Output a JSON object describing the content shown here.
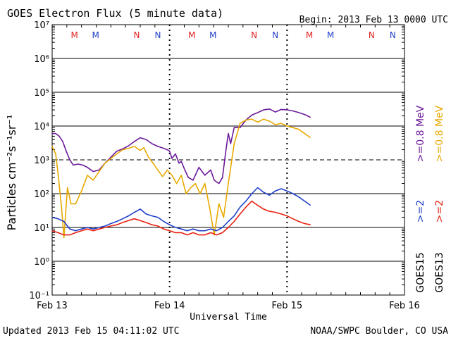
{
  "header": {
    "title": "GOES Electron Flux (5 minute data)",
    "begin": "Begin: 2013 Feb 13 0000 UTC"
  },
  "footer": {
    "updated": "Updated 2013 Feb 15 04:11:02 UTC",
    "credit": "NOAA/SWPC Boulder, CO USA"
  },
  "colors": {
    "goes15_high": "#2040c8",
    "goes13_high": "#e82010",
    "goes15_mev": "#6a1a9a",
    "goes13_mev": "#e8a800",
    "marker_m": "#e02020",
    "marker_n_red": "#e02020",
    "marker_n_blue": "#2040c8",
    "grid": "#000000"
  },
  "chart_data": {
    "type": "line",
    "title": "GOES Electron Flux (5 minute data)",
    "xlabel": "Universal Time",
    "ylabel": "Particles cm⁻²s⁻¹sr⁻¹",
    "x_ticks": [
      "Feb 13",
      "Feb 14",
      "Feb 15",
      "Feb 16"
    ],
    "x_unit": "days since 2013 Feb 13 0000 UTC",
    "xlim": [
      0,
      3
    ],
    "yscale": "log",
    "ylim": [
      0.1,
      10000000
    ],
    "y_ticks": [
      "10⁻¹",
      "10⁰",
      "10¹",
      "10²",
      "10³",
      "10⁴",
      "10⁵",
      "10⁶",
      "10⁷"
    ],
    "threshold_line": 1000,
    "legend": {
      "right_labels": [
        {
          "text": ">=0.8 MeV",
          "series": "goes15_mev",
          "color": "#6a1a9a"
        },
        {
          "text": ">=0.8 MeV",
          "series": "goes13_mev",
          "color": "#e8a800"
        },
        {
          "text": ">=2",
          "series": "goes15_high",
          "color": "#2040c8"
        },
        {
          "text": ">=2",
          "series": "goes13_high",
          "color": "#e82010"
        },
        {
          "text": "GOES15",
          "color": "#000000"
        },
        {
          "text": "GOES13",
          "color": "#000000"
        }
      ]
    },
    "markers": [
      {
        "label": "M",
        "x": 0.19,
        "color": "#e02020"
      },
      {
        "label": "M",
        "x": 0.37,
        "color": "#2040c8"
      },
      {
        "label": "N",
        "x": 0.72,
        "color": "#e02020"
      },
      {
        "label": "N",
        "x": 0.9,
        "color": "#2040c8"
      },
      {
        "label": "M",
        "x": 1.19,
        "color": "#e02020"
      },
      {
        "label": "M",
        "x": 1.37,
        "color": "#2040c8"
      },
      {
        "label": "N",
        "x": 1.72,
        "color": "#e02020"
      },
      {
        "label": "N",
        "x": 1.9,
        "color": "#2040c8"
      },
      {
        "label": "M",
        "x": 2.19,
        "color": "#e02020"
      },
      {
        "label": "M",
        "x": 2.37,
        "color": "#2040c8"
      },
      {
        "label": "N",
        "x": 2.72,
        "color": "#e02020"
      },
      {
        "label": "N",
        "x": 2.9,
        "color": "#2040c8"
      }
    ],
    "series": [
      {
        "id": "goes15_mev",
        "color": "#6a1a9a",
        "x": [
          0.0,
          0.03,
          0.06,
          0.09,
          0.12,
          0.15,
          0.18,
          0.22,
          0.26,
          0.3,
          0.35,
          0.4,
          0.45,
          0.5,
          0.55,
          0.6,
          0.65,
          0.7,
          0.75,
          0.8,
          0.85,
          0.9,
          0.95,
          0.98,
          1.0,
          1.02,
          1.05,
          1.08,
          1.1,
          1.13,
          1.16,
          1.2,
          1.25,
          1.3,
          1.35,
          1.38,
          1.42,
          1.45,
          1.48,
          1.5,
          1.52,
          1.55,
          1.6,
          1.65,
          1.7,
          1.75,
          1.8,
          1.85,
          1.9,
          1.95,
          2.0,
          2.05,
          2.1,
          2.15,
          2.2
        ],
        "y": [
          6000,
          6000,
          5000,
          3500,
          1800,
          1000,
          700,
          750,
          700,
          600,
          450,
          500,
          800,
          1200,
          1800,
          2100,
          2600,
          3500,
          4500,
          4000,
          3000,
          2500,
          2200,
          2000,
          1800,
          1100,
          1500,
          800,
          900,
          500,
          300,
          250,
          600,
          350,
          500,
          250,
          200,
          300,
          2000,
          6000,
          3000,
          9000,
          9000,
          15000,
          21000,
          25000,
          30000,
          32000,
          26000,
          31000,
          30000,
          28000,
          25000,
          22000,
          18000
        ]
      },
      {
        "id": "goes13_mev",
        "color": "#e8a800",
        "x": [
          0.0,
          0.03,
          0.05,
          0.08,
          0.1,
          0.13,
          0.16,
          0.2,
          0.25,
          0.3,
          0.35,
          0.4,
          0.45,
          0.5,
          0.55,
          0.6,
          0.65,
          0.7,
          0.75,
          0.78,
          0.82,
          0.86,
          0.9,
          0.94,
          0.98,
          1.02,
          1.06,
          1.1,
          1.14,
          1.18,
          1.22,
          1.26,
          1.3,
          1.34,
          1.38,
          1.42,
          1.46,
          1.5,
          1.55,
          1.6,
          1.65,
          1.7,
          1.75,
          1.8,
          1.85,
          1.9,
          1.95,
          2.0,
          2.05,
          2.1,
          2.15,
          2.2
        ],
        "y": [
          2500,
          1500,
          400,
          40,
          5,
          150,
          50,
          50,
          120,
          350,
          250,
          450,
          800,
          1100,
          1500,
          2000,
          2200,
          2500,
          1900,
          2300,
          1200,
          800,
          500,
          320,
          500,
          350,
          200,
          350,
          100,
          150,
          200,
          100,
          200,
          40,
          6,
          50,
          20,
          200,
          3000,
          12000,
          15000,
          16000,
          13000,
          16000,
          14000,
          11000,
          12000,
          10000,
          9000,
          8000,
          6000,
          4500
        ]
      },
      {
        "id": "goes15_high",
        "color": "#2040c8",
        "x": [
          0.0,
          0.05,
          0.1,
          0.15,
          0.2,
          0.25,
          0.3,
          0.35,
          0.4,
          0.45,
          0.5,
          0.55,
          0.6,
          0.65,
          0.7,
          0.75,
          0.8,
          0.85,
          0.9,
          0.95,
          1.0,
          1.05,
          1.1,
          1.15,
          1.2,
          1.25,
          1.3,
          1.35,
          1.4,
          1.45,
          1.5,
          1.55,
          1.6,
          1.65,
          1.7,
          1.75,
          1.8,
          1.85,
          1.9,
          1.95,
          2.0,
          2.05,
          2.1,
          2.15,
          2.2
        ],
        "y": [
          20,
          18,
          15,
          9,
          8,
          9,
          10,
          9,
          10,
          11,
          13,
          15,
          18,
          22,
          28,
          35,
          25,
          22,
          20,
          15,
          12,
          10,
          9,
          8,
          9,
          8,
          8,
          9,
          8,
          10,
          15,
          22,
          40,
          60,
          100,
          150,
          110,
          90,
          120,
          140,
          120,
          100,
          80,
          60,
          45
        ]
      },
      {
        "id": "goes13_high",
        "color": "#e82010",
        "x": [
          0.0,
          0.05,
          0.1,
          0.15,
          0.2,
          0.25,
          0.3,
          0.35,
          0.4,
          0.45,
          0.5,
          0.55,
          0.6,
          0.65,
          0.7,
          0.75,
          0.8,
          0.85,
          0.9,
          0.95,
          1.0,
          1.05,
          1.1,
          1.15,
          1.2,
          1.25,
          1.3,
          1.35,
          1.4,
          1.45,
          1.5,
          1.55,
          1.6,
          1.65,
          1.7,
          1.75,
          1.8,
          1.85,
          1.9,
          1.95,
          2.0,
          2.05,
          2.1,
          2.15,
          2.2
        ],
        "y": [
          8,
          7,
          6,
          6,
          7,
          8,
          9,
          8,
          9,
          10,
          11,
          12,
          14,
          16,
          18,
          16,
          14,
          12,
          11,
          9,
          8,
          7,
          7,
          6,
          7,
          6,
          6,
          7,
          6,
          7,
          10,
          15,
          25,
          40,
          60,
          45,
          35,
          30,
          28,
          25,
          22,
          18,
          15,
          13,
          12
        ]
      }
    ]
  }
}
